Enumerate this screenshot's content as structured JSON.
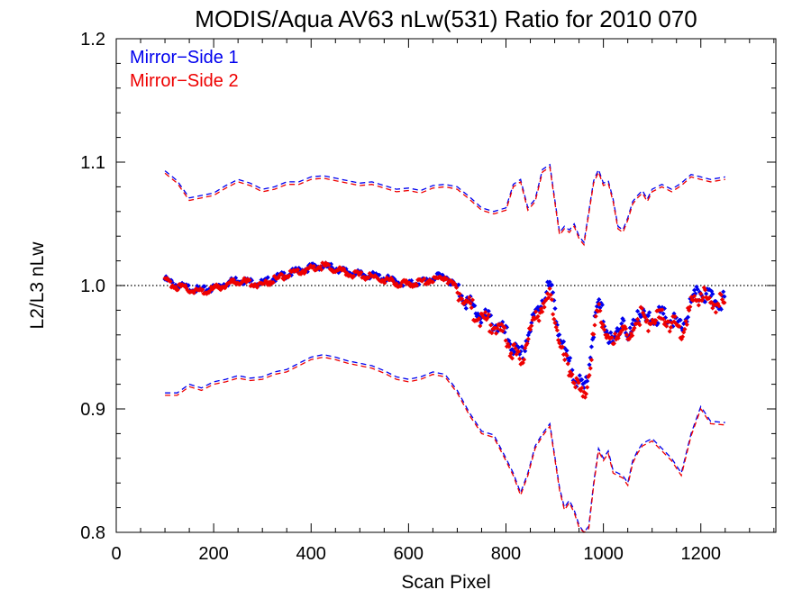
{
  "chart_data": {
    "type": "scatter",
    "title": "MODIS/Aqua AV63 nLw(531) Ratio for 2010 070",
    "xlabel": "Scan Pixel",
    "ylabel": "L2/L3 nLw",
    "xlim": [
      0,
      1354
    ],
    "ylim": [
      0.8,
      1.2
    ],
    "x_ticks": [
      0,
      200,
      400,
      600,
      800,
      1000,
      1200
    ],
    "x_tick_labels": [
      "0",
      "200",
      "400",
      "600",
      "800",
      "1000",
      "1200"
    ],
    "y_ticks": [
      0.8,
      0.9,
      1.0,
      1.1,
      1.2
    ],
    "y_tick_labels": [
      "0.8",
      "0.9",
      "1.0",
      "1.1",
      "1.2"
    ],
    "reference_line": 1.0,
    "legend_position": "top-left",
    "colors": {
      "ms1": "#0000ee",
      "ms2": "#ee0000",
      "axes": "#000000"
    },
    "series": [
      {
        "name": "Mirror−Side 1",
        "color": "#0000ee",
        "x": [
          100,
          125,
          150,
          175,
          200,
          225,
          250,
          275,
          300,
          325,
          350,
          375,
          400,
          425,
          450,
          475,
          500,
          525,
          550,
          575,
          600,
          625,
          650,
          675,
          700,
          725,
          750,
          775,
          800,
          815,
          830,
          845,
          860,
          875,
          890,
          900,
          910,
          920,
          930,
          940,
          950,
          960,
          970,
          980,
          990,
          1000,
          1010,
          1020,
          1030,
          1040,
          1050,
          1060,
          1070,
          1080,
          1090,
          1100,
          1120,
          1140,
          1160,
          1180,
          1200,
          1220,
          1250
        ],
        "mean": [
          1.005,
          1.0,
          0.998,
          0.996,
          0.998,
          1.002,
          1.005,
          1.003,
          1.002,
          1.006,
          1.009,
          1.012,
          1.015,
          1.016,
          1.014,
          1.011,
          1.009,
          1.008,
          1.006,
          1.003,
          1.001,
          1.003,
          1.006,
          1.008,
          0.998,
          0.985,
          0.975,
          0.97,
          0.96,
          0.95,
          0.94,
          0.96,
          0.975,
          0.99,
          1.0,
          0.985,
          0.96,
          0.945,
          0.935,
          0.93,
          0.92,
          0.915,
          0.935,
          0.965,
          0.985,
          0.975,
          0.96,
          0.95,
          0.965,
          0.975,
          0.955,
          0.965,
          0.98,
          0.975,
          0.97,
          0.975,
          0.975,
          0.972,
          0.965,
          0.985,
          0.996,
          0.988,
          0.988
        ],
        "upper": [
          1.093,
          1.085,
          1.071,
          1.073,
          1.075,
          1.081,
          1.086,
          1.083,
          1.078,
          1.08,
          1.084,
          1.084,
          1.088,
          1.089,
          1.087,
          1.085,
          1.083,
          1.084,
          1.081,
          1.078,
          1.079,
          1.077,
          1.081,
          1.082,
          1.08,
          1.072,
          1.063,
          1.06,
          1.063,
          1.082,
          1.086,
          1.063,
          1.07,
          1.094,
          1.098,
          1.07,
          1.043,
          1.048,
          1.045,
          1.05,
          1.04,
          1.035,
          1.06,
          1.085,
          1.094,
          1.083,
          1.085,
          1.07,
          1.048,
          1.045,
          1.055,
          1.068,
          1.073,
          1.077,
          1.07,
          1.078,
          1.082,
          1.078,
          1.083,
          1.09,
          1.088,
          1.086,
          1.088
        ],
        "lower": [
          0.913,
          0.913,
          0.92,
          0.917,
          0.922,
          0.924,
          0.927,
          0.925,
          0.926,
          0.93,
          0.932,
          0.937,
          0.942,
          0.944,
          0.942,
          0.939,
          0.937,
          0.935,
          0.931,
          0.926,
          0.924,
          0.926,
          0.93,
          0.928,
          0.915,
          0.897,
          0.882,
          0.879,
          0.86,
          0.848,
          0.832,
          0.848,
          0.87,
          0.88,
          0.888,
          0.862,
          0.836,
          0.82,
          0.826,
          0.818,
          0.806,
          0.795,
          0.805,
          0.84,
          0.868,
          0.86,
          0.866,
          0.85,
          0.848,
          0.846,
          0.84,
          0.858,
          0.866,
          0.872,
          0.874,
          0.876,
          0.868,
          0.86,
          0.848,
          0.88,
          0.902,
          0.89,
          0.889
        ]
      },
      {
        "name": "Mirror−Side 2",
        "color": "#ee0000",
        "x": [
          100,
          125,
          150,
          175,
          200,
          225,
          250,
          275,
          300,
          325,
          350,
          375,
          400,
          425,
          450,
          475,
          500,
          525,
          550,
          575,
          600,
          625,
          650,
          675,
          700,
          725,
          750,
          775,
          800,
          815,
          830,
          845,
          860,
          875,
          890,
          900,
          910,
          920,
          930,
          940,
          950,
          960,
          970,
          980,
          990,
          1000,
          1010,
          1020,
          1030,
          1040,
          1050,
          1060,
          1070,
          1080,
          1090,
          1100,
          1120,
          1140,
          1160,
          1180,
          1200,
          1220,
          1250
        ],
        "mean": [
          1.004,
          0.999,
          0.997,
          0.995,
          0.997,
          1.001,
          1.004,
          1.002,
          1.001,
          1.005,
          1.008,
          1.011,
          1.014,
          1.016,
          1.013,
          1.01,
          1.008,
          1.007,
          1.005,
          1.002,
          1.001,
          1.003,
          1.005,
          1.007,
          0.997,
          0.984,
          0.972,
          0.967,
          0.957,
          0.946,
          0.936,
          0.958,
          0.973,
          0.985,
          0.99,
          0.978,
          0.955,
          0.94,
          0.932,
          0.926,
          0.915,
          0.908,
          0.93,
          0.96,
          0.98,
          0.972,
          0.958,
          0.948,
          0.962,
          0.972,
          0.952,
          0.963,
          0.978,
          0.973,
          0.968,
          0.973,
          0.973,
          0.97,
          0.963,
          0.983,
          0.994,
          0.986,
          0.986
        ],
        "upper": [
          1.091,
          1.083,
          1.069,
          1.071,
          1.073,
          1.079,
          1.084,
          1.081,
          1.076,
          1.078,
          1.082,
          1.082,
          1.086,
          1.087,
          1.085,
          1.083,
          1.081,
          1.082,
          1.079,
          1.076,
          1.077,
          1.075,
          1.079,
          1.08,
          1.078,
          1.07,
          1.061,
          1.058,
          1.061,
          1.08,
          1.084,
          1.061,
          1.068,
          1.092,
          1.096,
          1.068,
          1.041,
          1.046,
          1.043,
          1.048,
          1.038,
          1.033,
          1.058,
          1.083,
          1.092,
          1.081,
          1.083,
          1.068,
          1.046,
          1.043,
          1.053,
          1.066,
          1.071,
          1.075,
          1.068,
          1.076,
          1.08,
          1.076,
          1.081,
          1.088,
          1.086,
          1.084,
          1.086
        ],
        "lower": [
          0.911,
          0.911,
          0.918,
          0.915,
          0.92,
          0.922,
          0.925,
          0.923,
          0.924,
          0.928,
          0.93,
          0.935,
          0.94,
          0.942,
          0.94,
          0.937,
          0.935,
          0.933,
          0.929,
          0.924,
          0.922,
          0.924,
          0.928,
          0.926,
          0.913,
          0.895,
          0.88,
          0.877,
          0.858,
          0.846,
          0.83,
          0.846,
          0.868,
          0.878,
          0.886,
          0.86,
          0.834,
          0.818,
          0.824,
          0.816,
          0.804,
          0.793,
          0.803,
          0.838,
          0.866,
          0.858,
          0.864,
          0.848,
          0.846,
          0.844,
          0.838,
          0.856,
          0.864,
          0.87,
          0.872,
          0.874,
          0.866,
          0.858,
          0.846,
          0.878,
          0.9,
          0.888,
          0.887
        ]
      }
    ]
  }
}
